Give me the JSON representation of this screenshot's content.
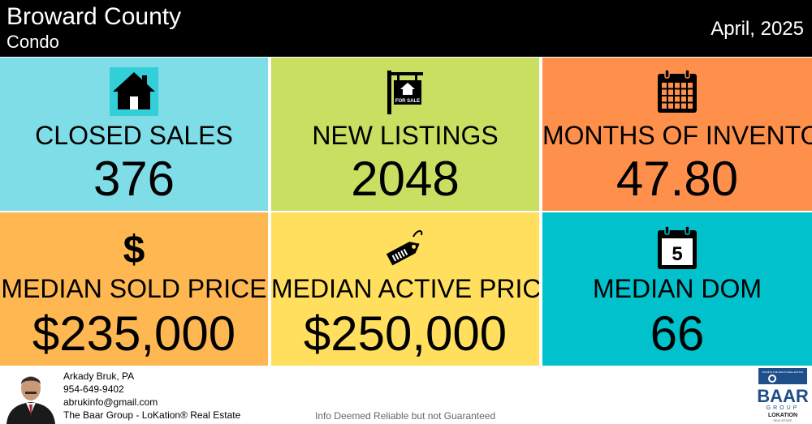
{
  "header": {
    "county": "Broward County",
    "property_type": "Condo",
    "period": "April, 2025"
  },
  "tiles": [
    {
      "label": "CLOSED SALES",
      "value": "376",
      "icon": "house-icon",
      "color": "#7fdde8"
    },
    {
      "label": "NEW LISTINGS",
      "value": "2048",
      "icon": "for-sale-sign-icon",
      "icon_text": "FOR SALE",
      "color": "#c8df62"
    },
    {
      "label": "MONTHS OF INVENTORY",
      "value": "47.80",
      "icon": "calendar-icon",
      "color": "#fe904c"
    },
    {
      "label": "MEDIAN SOLD PRICE",
      "value": "$235,000",
      "icon": "dollar-icon",
      "icon_text": "$",
      "color": "#ffb751"
    },
    {
      "label": "MEDIAN ACTIVE PRICE",
      "value": "$250,000",
      "icon": "price-tag-icon",
      "color": "#ffdf5d"
    },
    {
      "label": "MEDIAN DOM",
      "value": "66",
      "icon": "calendar-day-icon",
      "icon_text": "5",
      "color": "#00c1cc"
    }
  ],
  "footer": {
    "agent_name": "Arkady Bruk, PA",
    "phone": "954-649-9402",
    "email": "abrukinfo@gmail.com",
    "company": "The Baar Group - LoKation® Real Estate",
    "disclaimer": "Info Deemed Reliable but not Guaranteed",
    "logo": {
      "tagline": "RAISING THE BAR IN REAL ESTATE",
      "name": "BAAR",
      "sub": "GROUP",
      "brand": "LOKATION",
      "brand_sub": "REAL ESTATE"
    }
  }
}
